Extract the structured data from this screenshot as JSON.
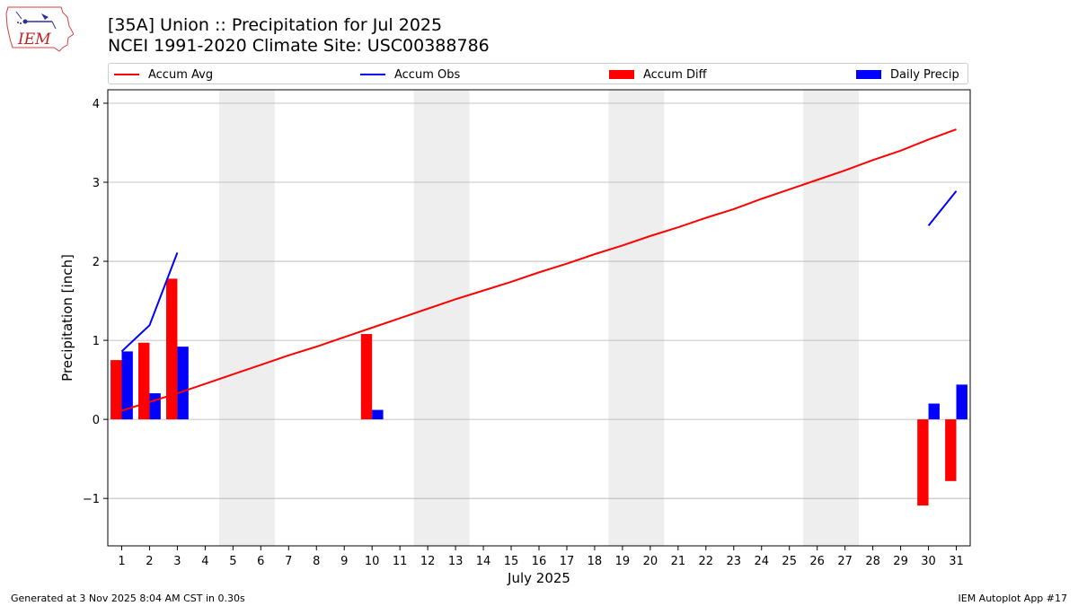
{
  "header": {
    "title_line1": "[35A] Union :: Precipitation for Jul 2025",
    "title_line2": "NCEI 1991-2020 Climate Site: USC00388786",
    "logo_text": "IEM"
  },
  "legend": {
    "accum_avg": "Accum Avg",
    "accum_obs": "Accum Obs",
    "accum_diff": "Accum Diff",
    "daily_precip": "Daily Precip"
  },
  "footer": {
    "left": "Generated at 3 Nov 2025 8:04 AM CST in 0.30s",
    "right": "IEM Autoplot App #17"
  },
  "colors": {
    "accum_avg": "#ff0000",
    "accum_obs": "#0000ff",
    "accum_diff": "#ff0000",
    "daily_precip": "#0000ff",
    "weekend_shade": "#eeeeee",
    "grid": "#b0b0b0"
  },
  "chart_data": {
    "type": "bar",
    "xlabel": "July 2025",
    "ylabel": "Precipitation [inch]",
    "xlim": [
      0.5,
      31.5
    ],
    "ylim": [
      -1.6,
      4.17
    ],
    "yticks": [
      -1,
      0,
      1,
      2,
      3,
      4
    ],
    "ytick_labels": [
      "−1",
      "0",
      "1",
      "2",
      "3",
      "4"
    ],
    "x": [
      1,
      2,
      3,
      4,
      5,
      6,
      7,
      8,
      9,
      10,
      11,
      12,
      13,
      14,
      15,
      16,
      17,
      18,
      19,
      20,
      21,
      22,
      23,
      24,
      25,
      26,
      27,
      28,
      29,
      30,
      31
    ],
    "x_labels": [
      "1",
      "2",
      "3",
      "4",
      "5",
      "6",
      "7",
      "8",
      "9",
      "10",
      "11",
      "12",
      "13",
      "14",
      "15",
      "16",
      "17",
      "18",
      "19",
      "20",
      "21",
      "22",
      "23",
      "24",
      "25",
      "26",
      "27",
      "28",
      "29",
      "30",
      "31"
    ],
    "grid": "horizontal",
    "legend_position": "top",
    "weekend_spans": [
      [
        4.5,
        6.5
      ],
      [
        11.5,
        13.5
      ],
      [
        18.5,
        20.5
      ],
      [
        25.5,
        27.5
      ]
    ],
    "series": [
      {
        "name": "Accum Avg",
        "kind": "line",
        "x": [
          1,
          2,
          3,
          4,
          5,
          6,
          7,
          8,
          9,
          10,
          11,
          12,
          13,
          14,
          15,
          16,
          17,
          18,
          19,
          20,
          21,
          22,
          23,
          24,
          25,
          26,
          27,
          28,
          29,
          30,
          31
        ],
        "values": [
          0.11,
          0.22,
          0.33,
          0.45,
          0.57,
          0.69,
          0.81,
          0.92,
          1.04,
          1.16,
          1.28,
          1.4,
          1.52,
          1.63,
          1.74,
          1.86,
          1.97,
          2.09,
          2.2,
          2.32,
          2.43,
          2.55,
          2.66,
          2.79,
          2.91,
          3.03,
          3.15,
          3.28,
          3.4,
          3.54,
          3.67
        ]
      },
      {
        "name": "Accum Obs",
        "kind": "line",
        "segments": [
          {
            "x": [
              1,
              2,
              3
            ],
            "values": [
              0.86,
              1.19,
              2.11
            ]
          },
          {
            "x": [
              30,
              31
            ],
            "values": [
              2.45,
              2.89
            ]
          }
        ]
      },
      {
        "name": "Accum Diff",
        "kind": "bar",
        "offset": "left",
        "x": [
          1,
          2,
          3,
          10,
          30,
          31
        ],
        "values": [
          0.75,
          0.97,
          1.78,
          1.08,
          -1.09,
          -0.78
        ]
      },
      {
        "name": "Daily Precip",
        "kind": "bar",
        "offset": "right",
        "x": [
          1,
          2,
          3,
          10,
          30,
          31
        ],
        "values": [
          0.86,
          0.33,
          0.92,
          0.12,
          0.2,
          0.44
        ]
      }
    ]
  }
}
